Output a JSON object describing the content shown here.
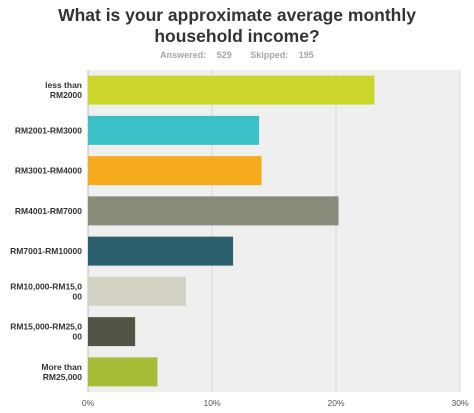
{
  "title": "What is your approximate average monthly household income?",
  "answered_label": "Answered:",
  "answered_value": "529",
  "skipped_label": "Skipped:",
  "skipped_value": "195",
  "chart_data": {
    "type": "bar",
    "orientation": "horizontal",
    "categories": [
      [
        "less than",
        "RM2000"
      ],
      [
        "RM2001-RM3000"
      ],
      [
        "RM3001-RM4000"
      ],
      [
        "RM4001-RM7000"
      ],
      [
        "RM7001-RM10000"
      ],
      [
        "RM10,000-RM15,0",
        "00"
      ],
      [
        "RM15,000-RM25,0",
        "00"
      ],
      [
        "More than",
        "RM25,000"
      ]
    ],
    "values": [
      23.1,
      13.8,
      14.0,
      20.2,
      11.7,
      7.9,
      3.8,
      5.6
    ],
    "colors": [
      "#cbd62b",
      "#3ac1c7",
      "#f6ab1e",
      "#8a8a7b",
      "#2c5f6e",
      "#d2d1c3",
      "#535346",
      "#a6bd38"
    ],
    "x_ticks": [
      "0%",
      "10%",
      "20%",
      "30%"
    ],
    "xlim": [
      0,
      30
    ],
    "grid": true,
    "background": "#efefef"
  }
}
